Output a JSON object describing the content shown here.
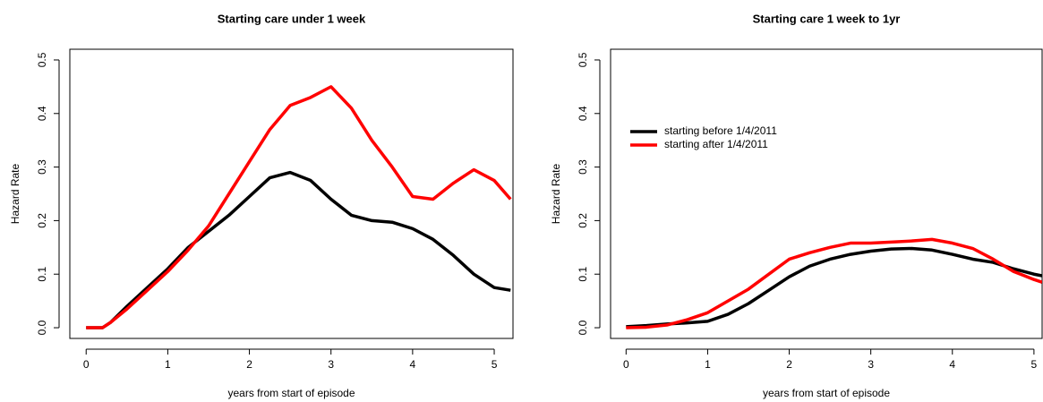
{
  "chart_data": [
    {
      "type": "line",
      "title": "Starting care under 1 week",
      "x_label": "years from start of episode",
      "y_label": "Hazard Rate",
      "x": [
        0,
        0.2,
        0.3,
        0.5,
        0.75,
        1,
        1.25,
        1.5,
        1.75,
        2,
        2.25,
        2.5,
        2.75,
        3,
        3.25,
        3.5,
        3.75,
        4,
        4.25,
        4.5,
        4.75,
        5,
        5.2
      ],
      "series": [
        {
          "color": "#000000",
          "values": [
            0,
            0,
            0.01,
            0.04,
            0.075,
            0.11,
            0.15,
            0.18,
            0.21,
            0.245,
            0.28,
            0.29,
            0.275,
            0.24,
            0.21,
            0.2,
            0.197,
            0.185,
            0.165,
            0.135,
            0.1,
            0.075,
            0.07
          ]
        },
        {
          "color": "#ff0000",
          "values": [
            0,
            0,
            0.01,
            0.035,
            0.07,
            0.105,
            0.145,
            0.19,
            0.25,
            0.31,
            0.37,
            0.415,
            0.43,
            0.45,
            0.41,
            0.35,
            0.3,
            0.245,
            0.24,
            0.27,
            0.295,
            0.275,
            0.24
          ]
        }
      ],
      "xlim": [
        -0.2,
        5.23
      ],
      "ylim": [
        -0.02,
        0.52
      ],
      "xticks": [
        0,
        1,
        2,
        3,
        4,
        5
      ],
      "yticks": [
        {
          "value": 0,
          "label": "0.0"
        },
        0.1,
        0.2,
        0.3,
        0.4,
        0.5
      ]
    },
    {
      "type": "line",
      "title": "Starting care 1 week to 1yr",
      "x_label": "years from start of episode",
      "y_label": "Hazard Rate",
      "x": [
        0,
        0.25,
        0.5,
        0.75,
        1,
        1.25,
        1.5,
        1.75,
        2,
        2.25,
        2.5,
        2.75,
        3,
        3.25,
        3.5,
        3.75,
        4,
        4.25,
        4.5,
        4.75,
        5,
        5.1
      ],
      "series": [
        {
          "name": "starting before 1/4/2011",
          "color": "#000000",
          "values": [
            0.002,
            0.004,
            0.007,
            0.009,
            0.012,
            0.025,
            0.045,
            0.07,
            0.095,
            0.115,
            0.128,
            0.137,
            0.143,
            0.147,
            0.148,
            0.145,
            0.137,
            0.128,
            0.122,
            0.11,
            0.1,
            0.097
          ]
        },
        {
          "name": "starting after 1/4/2011",
          "color": "#ff0000",
          "values": [
            0,
            0.001,
            0.005,
            0.015,
            0.028,
            0.05,
            0.072,
            0.1,
            0.128,
            0.14,
            0.15,
            0.158,
            0.158,
            0.16,
            0.162,
            0.165,
            0.158,
            0.148,
            0.128,
            0.105,
            0.09,
            0.085
          ]
        }
      ],
      "legend": "top-left",
      "xlim": [
        -0.19,
        5.1
      ],
      "ylim": [
        -0.02,
        0.52
      ],
      "xticks": [
        0,
        1,
        2,
        3,
        4,
        5
      ],
      "yticks": [
        {
          "value": 0,
          "label": "0.0"
        },
        0.1,
        0.2,
        0.3,
        0.4,
        0.5
      ]
    }
  ]
}
